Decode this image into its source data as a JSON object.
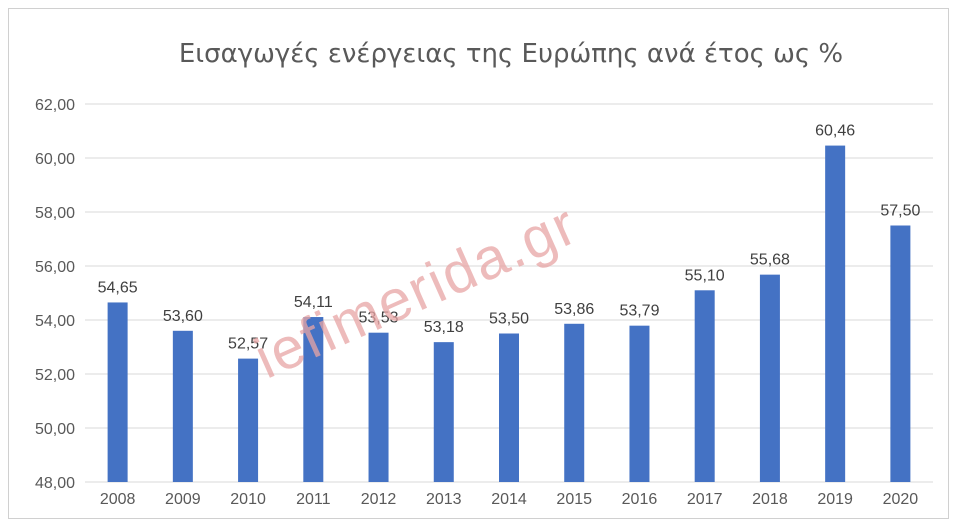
{
  "chart_data": {
    "type": "bar",
    "title": "Εισαγωγές ενέργειας της Ευρώπης ανά έτος ως %",
    "categories": [
      "2008",
      "2009",
      "2010",
      "2011",
      "2012",
      "2013",
      "2014",
      "2015",
      "2016",
      "2017",
      "2018",
      "2019",
      "2020"
    ],
    "values": [
      54.65,
      53.6,
      52.57,
      54.11,
      53.53,
      53.18,
      53.5,
      53.86,
      53.79,
      55.1,
      55.68,
      60.46,
      57.5
    ],
    "data_labels": [
      "54,65",
      "53,60",
      "52,57",
      "54,11",
      "53,53",
      "53,18",
      "53,50",
      "53,86",
      "53,79",
      "55,10",
      "55,68",
      "60,46",
      "57,50"
    ],
    "ylim": [
      48,
      62
    ],
    "yticks": [
      "48,00",
      "50,00",
      "52,00",
      "54,00",
      "56,00",
      "58,00",
      "60,00",
      "62,00"
    ],
    "grid": true,
    "legend": "none",
    "bar_color": "#4472c4",
    "watermark": "iefimerida.gr"
  }
}
